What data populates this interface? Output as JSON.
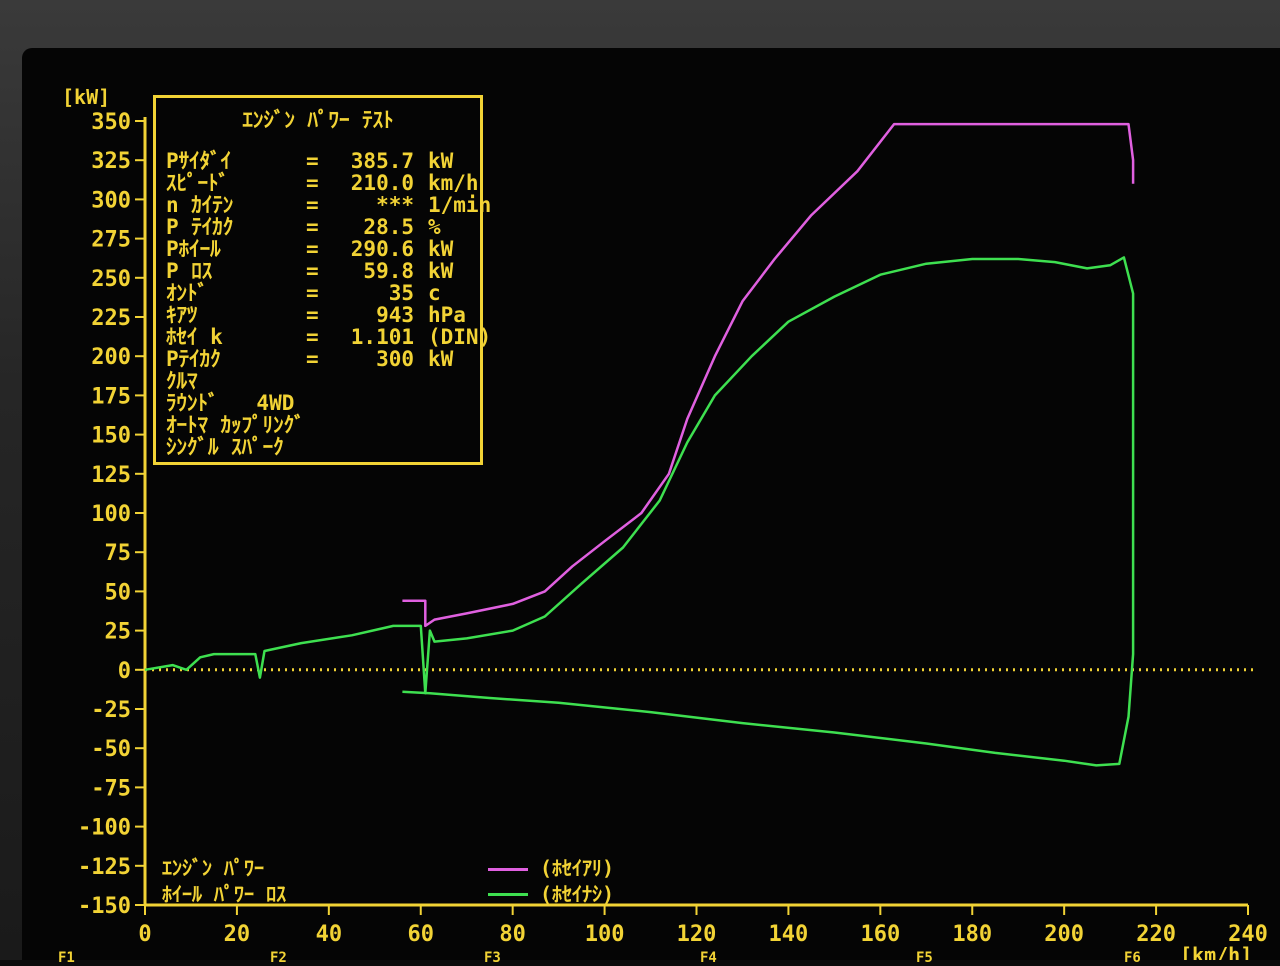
{
  "chart_data": {
    "type": "line",
    "y_unit": "[kW]",
    "x_unit": "[km/h]",
    "y_ticks": [
      350,
      325,
      300,
      275,
      250,
      225,
      200,
      175,
      150,
      125,
      100,
      75,
      50,
      25,
      0,
      -25,
      -50,
      -75,
      -100,
      -125,
      -150
    ],
    "x_ticks": [
      0,
      20,
      40,
      60,
      80,
      100,
      120,
      140,
      160,
      180,
      200,
      220,
      240
    ],
    "ylim": [
      -150,
      350
    ],
    "xlim": [
      0,
      240
    ],
    "zero_line": true,
    "series": [
      {
        "name": "(ホセイアリ)",
        "color": "#e060e0",
        "points": [
          [
            56,
            44
          ],
          [
            61,
            44
          ],
          [
            61,
            28
          ],
          [
            63,
            32
          ],
          [
            70,
            36
          ],
          [
            80,
            42
          ],
          [
            87,
            50
          ],
          [
            93,
            66
          ],
          [
            100,
            82
          ],
          [
            108,
            100
          ],
          [
            114,
            125
          ],
          [
            118,
            160
          ],
          [
            124,
            200
          ],
          [
            130,
            235
          ],
          [
            137,
            262
          ],
          [
            145,
            290
          ],
          [
            155,
            318
          ],
          [
            163,
            348
          ],
          [
            172,
            348
          ],
          [
            190,
            348
          ],
          [
            200,
            348
          ],
          [
            214,
            348
          ],
          [
            215,
            325
          ],
          [
            215,
            310
          ]
        ]
      },
      {
        "name": "(ホセイナシ)",
        "color": "#3ee050",
        "points": [
          [
            0,
            0
          ],
          [
            6,
            3
          ],
          [
            9,
            0
          ],
          [
            12,
            8
          ],
          [
            15,
            10
          ],
          [
            24,
            10
          ],
          [
            25,
            -5
          ],
          [
            26,
            12
          ],
          [
            34,
            17
          ],
          [
            45,
            22
          ],
          [
            54,
            28
          ],
          [
            60,
            28
          ],
          [
            61,
            -15
          ],
          [
            62,
            25
          ],
          [
            63,
            18
          ],
          [
            70,
            20
          ],
          [
            80,
            25
          ],
          [
            87,
            34
          ],
          [
            95,
            55
          ],
          [
            104,
            78
          ],
          [
            112,
            108
          ],
          [
            118,
            145
          ],
          [
            124,
            175
          ],
          [
            132,
            200
          ],
          [
            140,
            222
          ],
          [
            150,
            238
          ],
          [
            160,
            252
          ],
          [
            170,
            259
          ],
          [
            180,
            262
          ],
          [
            190,
            262
          ],
          [
            198,
            260
          ],
          [
            205,
            256
          ],
          [
            210,
            258
          ],
          [
            213,
            263
          ],
          [
            215,
            240
          ],
          [
            215,
            150
          ],
          [
            215,
            10
          ],
          [
            214,
            -30
          ],
          [
            212,
            -60
          ],
          [
            207,
            -61
          ],
          [
            200,
            -58
          ],
          [
            185,
            -53
          ],
          [
            170,
            -47
          ],
          [
            150,
            -40
          ],
          [
            130,
            -34
          ],
          [
            110,
            -27
          ],
          [
            90,
            -21
          ],
          [
            75,
            -18
          ],
          [
            62,
            -15
          ],
          [
            56,
            -14
          ]
        ]
      }
    ]
  },
  "info_box": {
    "title": "ｴﾝｼﾞﾝ ﾊﾟﾜｰ ﾃｽﾄ",
    "rows": [
      {
        "key": "Pｻｲﾀﾞｲ",
        "eq": "=",
        "value": "385.7",
        "unit": "kW"
      },
      {
        "key": "ｽﾋﾟｰﾄﾞ",
        "eq": "=",
        "value": "210.0",
        "unit": "km/h"
      },
      {
        "key": "n ｶｲﾃﾝ",
        "eq": "=",
        "value": "***",
        "unit": "1/min"
      },
      {
        "key": "P ﾃｲｶｸ",
        "eq": "=",
        "value": "28.5",
        "unit": "%"
      },
      {
        "key": "Pﾎｲｰﾙ",
        "eq": "=",
        "value": "290.6",
        "unit": "kW"
      },
      {
        "key": "P ﾛｽ",
        "eq": "=",
        "value": "59.8",
        "unit": "kW"
      },
      {
        "key": "ｵﾝﾄﾞ",
        "eq": "=",
        "value": "35",
        "unit": "c"
      },
      {
        "key": "ｷｱﾂ",
        "eq": "=",
        "value": "943",
        "unit": "hPa"
      },
      {
        "key": "ﾎｾｲ k",
        "eq": "=",
        "value": "1.101",
        "unit": "(DIN)"
      },
      {
        "key": "Pﾃｲｶｸ",
        "eq": "=",
        "value": "300",
        "unit": "kW"
      }
    ],
    "extra_lines": [
      "ｸﾙﾏ",
      "ﾗｳﾝﾄﾞ   4WD",
      "ｵｰﾄﾏ ｶｯﾌﾟﾘﾝｸﾞ",
      "ｼﾝｸﾞﾙ ｽﾊﾟｰｸ"
    ]
  },
  "legend": {
    "left_line1": "ｴﾝｼﾞﾝ ﾊﾟﾜｰ",
    "left_line2": "ﾎｲｰﾙ ﾊﾟﾜｰ ﾛｽ",
    "label1": "(ﾎｾｲｱﾘ)",
    "label2": "(ﾎｾｲﾅｼ)"
  },
  "function_keys": [
    "F1",
    "F2",
    "F3",
    "F4",
    "F5",
    "F6"
  ],
  "colors": {
    "axis": "#f2d335",
    "magenta": "#e060e0",
    "green": "#3ee050"
  }
}
